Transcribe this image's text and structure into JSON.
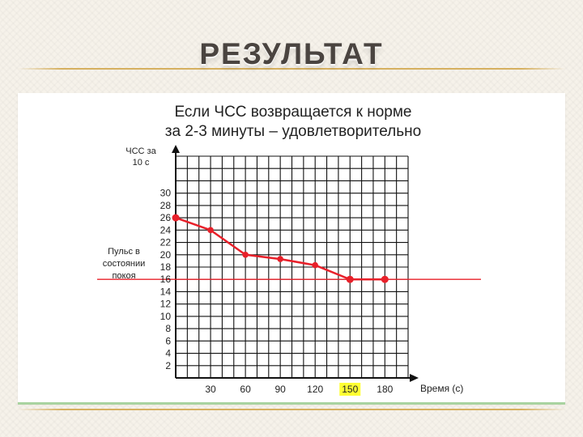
{
  "slide": {
    "title": "РЕЗУЛЬТАТ"
  },
  "chart_data": {
    "type": "line",
    "title_lines": [
      "Если ЧСС возвращается к норме",
      "за 2-3 минуты – удовлетворительно"
    ],
    "ylabel_lines": [
      "ЧСС за",
      "10 с"
    ],
    "xlabel": "Время (с)",
    "x_ticks": [
      "30",
      "60",
      "90",
      "120",
      "150",
      "180"
    ],
    "highlight_x_tick": "150",
    "y_ticks": [
      "2",
      "4",
      "6",
      "8",
      "10",
      "12",
      "14",
      "16",
      "18",
      "20",
      "22",
      "24",
      "26",
      "28",
      "30"
    ],
    "xlim": [
      0,
      200
    ],
    "ylim": [
      0,
      36
    ],
    "series": [
      {
        "x": [
          0,
          30,
          60,
          90,
          120,
          150,
          180
        ],
        "y": [
          26,
          24,
          20,
          19.3,
          18.3,
          16,
          16
        ]
      }
    ],
    "reference_line": {
      "y": 16,
      "label_lines": [
        "Пульс в",
        "состоянии",
        "покоя"
      ]
    },
    "grid": true,
    "colors": {
      "series": "#e8202a",
      "axes": "#111111",
      "grid": "#111111",
      "highlight": "#ffff33"
    }
  }
}
